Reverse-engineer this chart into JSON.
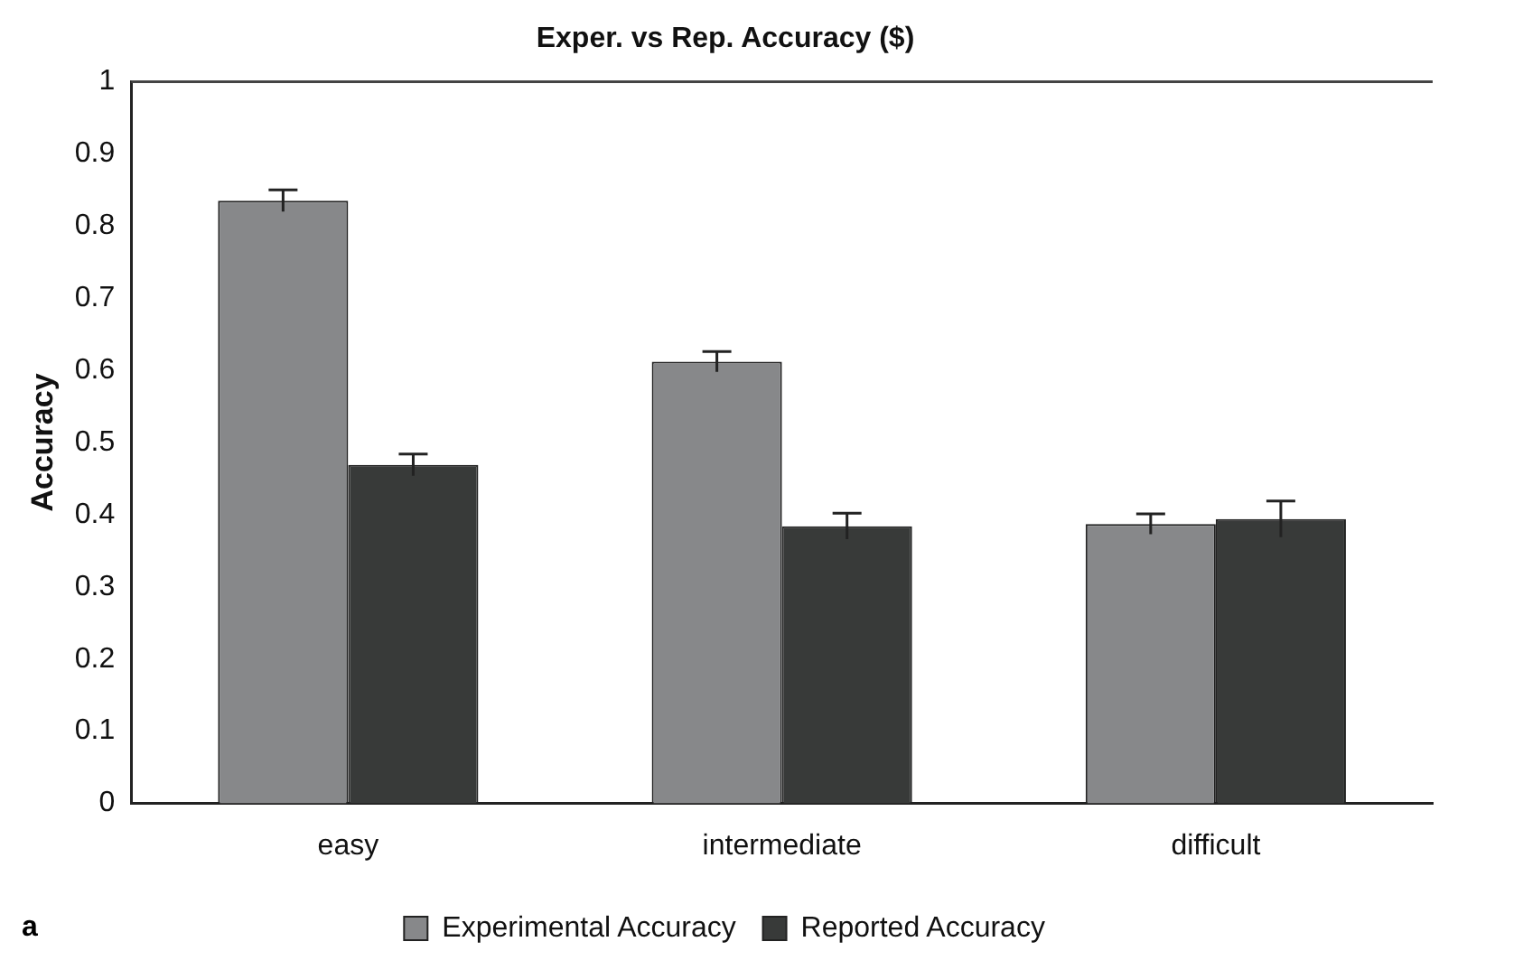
{
  "chart_data": {
    "type": "bar",
    "title": "Exper. vs Rep. Accuracy ($)",
    "ylabel": "Accuracy",
    "categories": [
      "easy",
      "intermediate",
      "difficult"
    ],
    "series": [
      {
        "name": "Experimental Accuracy",
        "color": "#87888a",
        "values": [
          0.835,
          0.612,
          0.387
        ],
        "errors": [
          0.015,
          0.014,
          0.014
        ]
      },
      {
        "name": "Reported Accuracy",
        "color": "#383a39",
        "values": [
          0.469,
          0.384,
          0.394
        ],
        "errors": [
          0.015,
          0.018,
          0.025
        ]
      }
    ],
    "ylim": [
      0,
      1
    ],
    "yticks": [
      0,
      0.1,
      0.2,
      0.3,
      0.4,
      0.5,
      0.6,
      0.7,
      0.8,
      0.9,
      1
    ],
    "grid": false,
    "legend": "bottom",
    "annotations": [
      "a"
    ]
  }
}
